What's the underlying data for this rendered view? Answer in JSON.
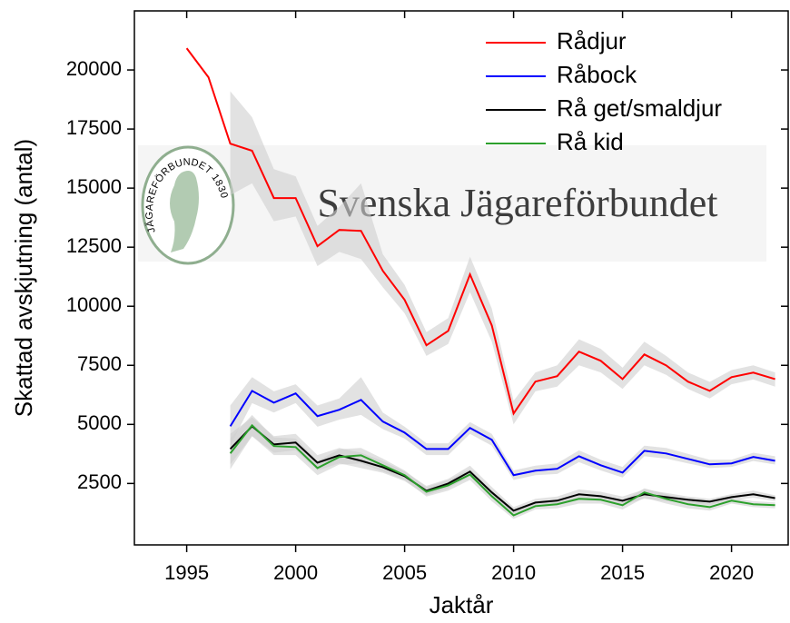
{
  "chart_data": {
    "type": "line",
    "xlabel": "Jaktår",
    "ylabel": "Skattad avskjutning (antal)",
    "watermark": "Svenska Jägareförbundet",
    "logo_text": "JÄGAREFÖRBUNDET 1830",
    "x": [
      1995,
      1996,
      1997,
      1998,
      1999,
      2000,
      2001,
      2002,
      2003,
      2004,
      2005,
      2006,
      2007,
      2008,
      2009,
      2010,
      2011,
      2012,
      2013,
      2014,
      2015,
      2016,
      2017,
      2018,
      2019,
      2020,
      2021,
      2022
    ],
    "xlim": [
      1992.6,
      2022.6
    ],
    "xticks": [
      1995,
      2000,
      2005,
      2010,
      2015,
      2020
    ],
    "ylim": [
      -100,
      22500
    ],
    "yticks": [
      2500,
      5000,
      7500,
      10000,
      12500,
      15000,
      17500,
      20000
    ],
    "legend": "upper right",
    "band_color": "#cfcfcf",
    "series": [
      {
        "name": "Rådjur",
        "color": "#ff0000",
        "values": [
          20920,
          19690,
          16880,
          16580,
          14580,
          14580,
          12540,
          13230,
          13190,
          11500,
          10270,
          8350,
          8960,
          11350,
          9190,
          5460,
          6810,
          7040,
          8080,
          7690,
          6920,
          7960,
          7500,
          6810,
          6420,
          7000,
          7190,
          6920
        ],
        "lower": [
          null,
          null,
          14700,
          15200,
          13600,
          13800,
          11700,
          12300,
          12000,
          10800,
          9700,
          7900,
          8400,
          10600,
          8500,
          5000,
          6400,
          6600,
          7500,
          7200,
          6500,
          7500,
          7100,
          6500,
          6100,
          6700,
          6900,
          6600
        ],
        "upper": [
          null,
          null,
          19100,
          18000,
          15800,
          15500,
          13400,
          14200,
          15200,
          12200,
          10900,
          8900,
          9500,
          12100,
          9900,
          6000,
          7200,
          7500,
          8600,
          8200,
          7400,
          8500,
          7900,
          7200,
          6800,
          7300,
          7500,
          7200
        ]
      },
      {
        "name": "Råbock",
        "color": "#0000ff",
        "values": [
          null,
          null,
          4920,
          6420,
          5920,
          6310,
          5350,
          5620,
          6040,
          5120,
          4650,
          3960,
          3960,
          4850,
          4350,
          2850,
          3040,
          3120,
          3650,
          3270,
          2960,
          3880,
          3770,
          3540,
          3310,
          3350,
          3620,
          3460
        ],
        "lower": [
          null,
          null,
          4100,
          5900,
          5500,
          5900,
          4900,
          5200,
          5400,
          4800,
          4400,
          3700,
          3700,
          4600,
          4100,
          2650,
          2850,
          2900,
          3400,
          3050,
          2750,
          3650,
          3550,
          3350,
          3150,
          3200,
          3450,
          3300
        ],
        "upper": [
          null,
          null,
          5800,
          7000,
          6400,
          6700,
          5800,
          6100,
          7000,
          5500,
          4900,
          4200,
          4200,
          5100,
          4600,
          3050,
          3250,
          3350,
          3900,
          3500,
          3200,
          4100,
          4000,
          3750,
          3500,
          3500,
          3800,
          3650
        ]
      },
      {
        "name": "Rå get/smaldjur",
        "color": "#000000",
        "values": [
          null,
          null,
          3960,
          4920,
          4150,
          4230,
          3380,
          3690,
          3460,
          3190,
          2810,
          2190,
          2500,
          3000,
          2120,
          1350,
          1690,
          1770,
          2040,
          1960,
          1770,
          2040,
          1920,
          1810,
          1730,
          1920,
          2040,
          1880
        ],
        "lower": [
          null,
          null,
          3300,
          4500,
          3800,
          3900,
          3050,
          3350,
          3150,
          2950,
          2600,
          2000,
          2300,
          2800,
          1900,
          1200,
          1550,
          1600,
          1850,
          1800,
          1600,
          1850,
          1750,
          1650,
          1600,
          1800,
          1900,
          1750
        ],
        "upper": [
          null,
          null,
          4600,
          5300,
          4500,
          4600,
          3700,
          4000,
          3800,
          3450,
          3000,
          2400,
          2700,
          3250,
          2350,
          1500,
          1850,
          1950,
          2250,
          2150,
          1950,
          2250,
          2100,
          1950,
          1850,
          2050,
          2200,
          2000
        ]
      },
      {
        "name": "Rå kid",
        "color": "#2ca02c",
        "values": [
          null,
          null,
          3770,
          4960,
          4080,
          4040,
          3150,
          3620,
          3690,
          3270,
          2850,
          2150,
          2420,
          2880,
          1960,
          1150,
          1540,
          1620,
          1850,
          1810,
          1580,
          2120,
          1850,
          1620,
          1500,
          1770,
          1620,
          1580
        ],
        "lower": [
          null,
          null,
          3100,
          4500,
          3700,
          3700,
          2850,
          3300,
          3350,
          3000,
          2650,
          1950,
          2200,
          2650,
          1750,
          1000,
          1400,
          1450,
          1650,
          1650,
          1400,
          1900,
          1650,
          1450,
          1350,
          1650,
          1500,
          1450
        ],
        "upper": [
          null,
          null,
          4400,
          5400,
          4450,
          4400,
          3450,
          3950,
          4000,
          3550,
          3050,
          2350,
          2650,
          3100,
          2200,
          1300,
          1700,
          1800,
          2050,
          2000,
          1750,
          2300,
          2050,
          1800,
          1650,
          1900,
          1750,
          1700
        ]
      }
    ]
  }
}
